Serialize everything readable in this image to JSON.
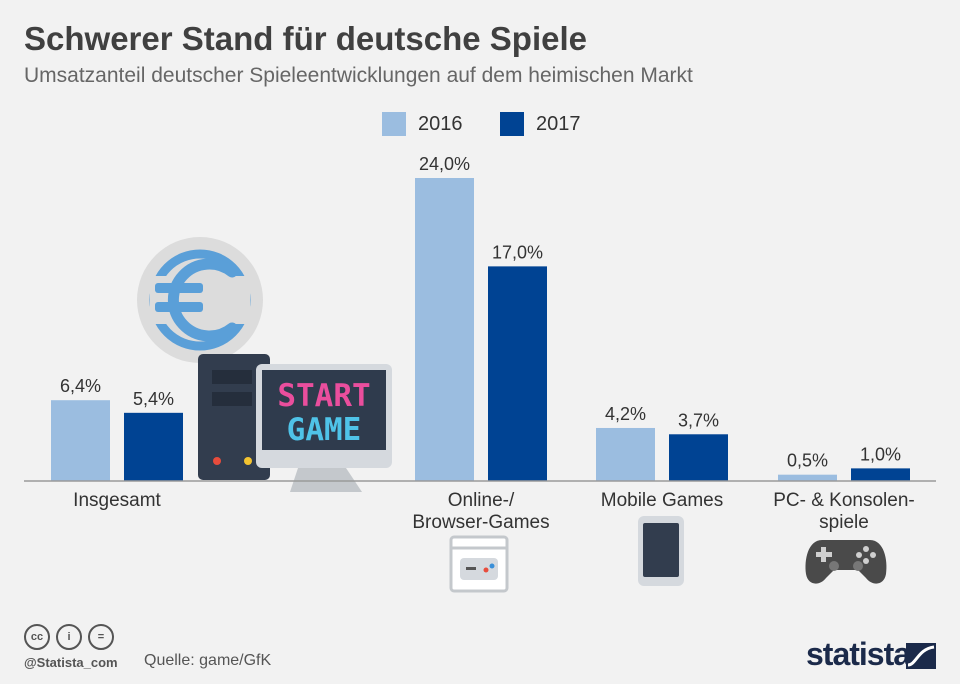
{
  "title": "Schwerer Stand für deutsche Spiele",
  "subtitle": "Umsatzanteil deutscher Spieleentwicklungen auf dem heimischen Markt",
  "legend": [
    {
      "label": "2016",
      "color": "#9bbde0"
    },
    {
      "label": "2017",
      "color": "#004393"
    }
  ],
  "illustration": {
    "screen_line1": "START",
    "screen_line2": "GAME",
    "coin_symbol": "€"
  },
  "footer": {
    "cc_icons": [
      "cc",
      "i",
      "="
    ],
    "handle": "@Statista_com",
    "source": "Quelle: game/GfK",
    "brand": "statista"
  },
  "chart_data": {
    "type": "bar",
    "title": "Schwerer Stand für deutsche Spiele",
    "subtitle": "Umsatzanteil deutscher Spieleentwicklungen auf dem heimischen Markt",
    "unit": "%",
    "categories": [
      "Insgesamt",
      "Online-/\nBrowser-Games",
      "Mobile Games",
      "PC- & Konsolen-\nspiele"
    ],
    "series": [
      {
        "name": "2016",
        "color": "#9bbde0",
        "values": [
          6.4,
          24.0,
          4.2,
          0.5
        ],
        "labels": [
          "6,4%",
          "24,0%",
          "4,2%",
          "0,5%"
        ]
      },
      {
        "name": "2017",
        "color": "#004393",
        "values": [
          5.4,
          17.0,
          3.7,
          1.0
        ],
        "labels": [
          "5,4%",
          "17,0%",
          "3,7%",
          "1,0%"
        ]
      }
    ],
    "ylim": [
      0,
      24
    ],
    "xlabel": "",
    "ylabel": "",
    "grid": false,
    "legend_position": "top-center"
  }
}
